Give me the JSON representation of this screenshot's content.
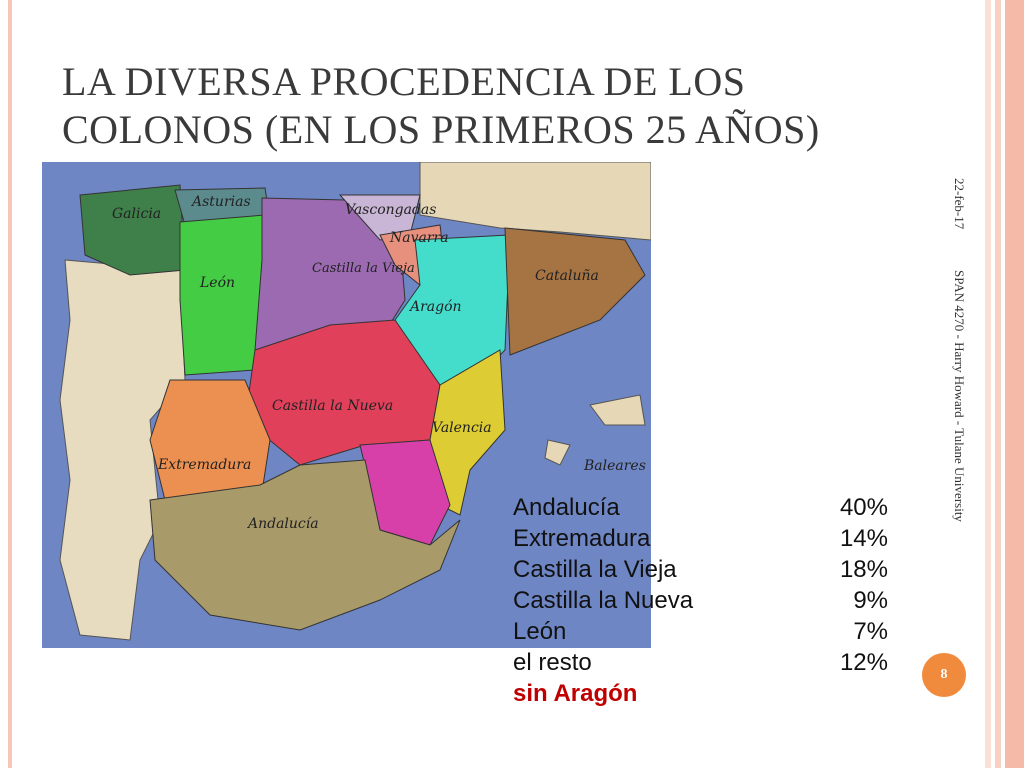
{
  "slide": {
    "title": "LA DIVERSA PROCEDENCIA DE LOS COLONOS (EN LOS PRIMEROS 25 AÑOS)",
    "date": "22-feb-17",
    "footer": "SPAN 4270 - Harry Howard - Tulane University",
    "page_number": "8"
  },
  "map": {
    "labels": [
      "Galicia",
      "Asturias",
      "Vascongadas",
      "Navarra",
      "León",
      "Castilla la Vieja",
      "Aragón",
      "Cataluña",
      "Castilla la Nueva",
      "Valencia",
      "Extremadura",
      "Baleares",
      "Andalucía"
    ]
  },
  "table": {
    "rows": [
      [
        "Andalucía",
        "40%"
      ],
      [
        "Extremadura",
        "14%"
      ],
      [
        "Castilla la Vieja",
        "18%"
      ],
      [
        "Castilla la Nueva",
        "9%"
      ],
      [
        "León",
        "7%"
      ],
      [
        "el resto",
        "12%"
      ]
    ],
    "note": "sin Aragón"
  }
}
